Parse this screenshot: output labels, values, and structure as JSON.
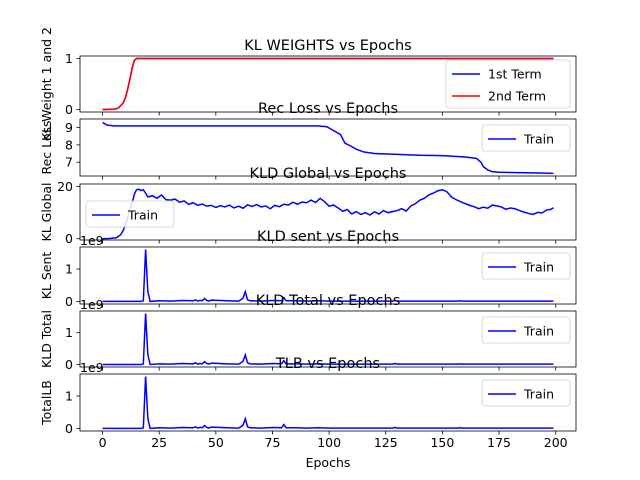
{
  "chart_data": [
    {
      "type": "line",
      "title": "KL WEIGHTS vs Epochs",
      "ylabel": "KL Weight 1 and 2",
      "xlim": [
        -9.95,
        208.95
      ],
      "ylim": [
        -0.05,
        1.05
      ],
      "yticks": [
        0,
        1
      ],
      "ytick_labels": [
        "0",
        "1"
      ],
      "legend": "bottom-right",
      "series": [
        {
          "name": "1st Term",
          "color": "#0000ff",
          "x": [
            0,
            5,
            7,
            9,
            10,
            11,
            12,
            13,
            14,
            15,
            20,
            50,
            100,
            150,
            199
          ],
          "y": [
            0,
            0.005,
            0.03,
            0.12,
            0.22,
            0.38,
            0.58,
            0.8,
            0.96,
            1,
            1,
            1,
            1,
            1,
            1
          ]
        },
        {
          "name": "2nd Term",
          "color": "#ff0000",
          "x": [
            0,
            5,
            7,
            9,
            10,
            11,
            12,
            13,
            14,
            15,
            20,
            50,
            100,
            150,
            199
          ],
          "y": [
            0,
            0.005,
            0.03,
            0.12,
            0.22,
            0.38,
            0.58,
            0.8,
            0.96,
            1,
            1,
            1,
            1,
            1,
            1
          ]
        }
      ]
    },
    {
      "type": "line",
      "title": "Rec Loss vs Epochs",
      "ylabel": "Rec Loss",
      "xlim": [
        -9.95,
        208.95
      ],
      "ylim": [
        6.2,
        9.5
      ],
      "yticks": [
        7,
        8,
        9
      ],
      "ytick_labels": [
        "7",
        "8",
        "9"
      ],
      "legend": "top-right",
      "series": [
        {
          "name": "Train",
          "color": "#0000ff",
          "x": [
            0,
            2,
            5,
            10,
            20,
            40,
            60,
            80,
            95,
            99,
            101,
            103,
            105,
            107,
            110,
            112,
            115,
            120,
            130,
            140,
            150,
            160,
            165,
            167,
            168,
            170,
            172,
            175,
            180,
            190,
            199
          ],
          "y": [
            9.3,
            9.15,
            9.1,
            9.1,
            9.1,
            9.1,
            9.1,
            9.1,
            9.1,
            9.05,
            8.9,
            8.75,
            8.6,
            8.1,
            7.9,
            7.75,
            7.6,
            7.5,
            7.45,
            7.4,
            7.38,
            7.3,
            7.22,
            7.0,
            6.75,
            6.55,
            6.45,
            6.42,
            6.4,
            6.38,
            6.35
          ]
        }
      ]
    },
    {
      "type": "line",
      "title": "KLD Global vs Epochs",
      "ylabel": "KL Global",
      "xlim": [
        -9.95,
        208.95
      ],
      "ylim": [
        -0.5,
        21
      ],
      "yticks": [
        0,
        20
      ],
      "ytick_labels": [
        "0",
        "20"
      ],
      "legend": "middle-left",
      "series": [
        {
          "name": "Train",
          "color": "#0000ff",
          "x": [
            0,
            3,
            6,
            8,
            9,
            10,
            11,
            12,
            13,
            14,
            15,
            16,
            17,
            18,
            19,
            20,
            22,
            24,
            26,
            28,
            30,
            32,
            34,
            36,
            38,
            40,
            42,
            44,
            46,
            48,
            50,
            52,
            54,
            56,
            58,
            60,
            62,
            64,
            66,
            68,
            70,
            72,
            74,
            76,
            78,
            80,
            82,
            84,
            86,
            88,
            90,
            92,
            94,
            96,
            98,
            100,
            102,
            104,
            106,
            108,
            110,
            112,
            114,
            116,
            118,
            120,
            122,
            124,
            126,
            128,
            130,
            132,
            134,
            136,
            138,
            140,
            142,
            144,
            146,
            148,
            150,
            152,
            154,
            156,
            158,
            160,
            162,
            164,
            166,
            168,
            170,
            172,
            174,
            176,
            178,
            180,
            182,
            184,
            186,
            188,
            190,
            192,
            194,
            196,
            198,
            199
          ],
          "y": [
            0,
            0.1,
            0.3,
            1.5,
            3,
            5,
            8,
            11,
            13.5,
            17,
            18.8,
            19,
            18.5,
            18.8,
            17.5,
            16,
            16.5,
            15.5,
            16.8,
            15,
            14.8,
            15.2,
            14,
            14.5,
            13.2,
            13.8,
            12.8,
            13.3,
            12.5,
            12.8,
            12,
            12.7,
            12.2,
            12.9,
            11.8,
            12.5,
            11.7,
            13,
            12.4,
            13.1,
            12.2,
            12.6,
            11.5,
            12.8,
            12.3,
            13.2,
            12.9,
            14,
            13.2,
            14.1,
            13.8,
            14.8,
            13.9,
            15.5,
            14.2,
            12.5,
            12.9,
            11.8,
            10.5,
            11.2,
            9.5,
            10.4,
            9.3,
            10,
            9.1,
            10.3,
            9.5,
            10.8,
            10,
            10.4,
            10.8,
            11.5,
            10.6,
            12.5,
            13.4,
            14.8,
            15.5,
            16.8,
            17.5,
            18.4,
            18.8,
            18,
            16,
            15,
            14.2,
            13.5,
            12.8,
            12.3,
            11.5,
            12.1,
            11.7,
            12.9,
            12.6,
            12.2,
            11.3,
            11.8,
            11.5,
            10.8,
            10.2,
            9.7,
            9.3,
            10.1,
            9.9,
            11,
            11.3,
            11.9
          ]
        }
      ]
    },
    {
      "type": "line",
      "title": "KLD sent vs Epochs",
      "ylabel": "KL Sent",
      "offset_label": "1e9",
      "xlim": [
        -9.95,
        208.95
      ],
      "ylim": [
        -0.08,
        1.68
      ],
      "yticks": [
        0,
        1
      ],
      "ytick_labels": [
        "0",
        "1"
      ],
      "legend": "top-right",
      "series": [
        {
          "name": "Train",
          "color": "#0000ff",
          "x": [
            0,
            17,
            18,
            19,
            20,
            21,
            25,
            30,
            35,
            40,
            41,
            42,
            43,
            44,
            45,
            46,
            47,
            48,
            55,
            60,
            61,
            62,
            63,
            64,
            65,
            70,
            75,
            79,
            80,
            81,
            85,
            90,
            95,
            100,
            120,
            128,
            129,
            130,
            131,
            140,
            150,
            157,
            158,
            159,
            170,
            185,
            199
          ],
          "y": [
            0,
            0,
            0.02,
            1.6,
            0.3,
            0,
            0.02,
            0.01,
            0.03,
            0.02,
            0.05,
            0.01,
            0.03,
            0.02,
            0.09,
            0.03,
            0.01,
            0.04,
            0.02,
            0.01,
            0.05,
            0.1,
            0.3,
            0.05,
            0.02,
            0.01,
            0.03,
            0.02,
            0.12,
            0.02,
            0.02,
            0.01,
            0.02,
            0.01,
            0.01,
            0.01,
            0.03,
            0.01,
            0.01,
            0.01,
            0.01,
            0.01,
            0.02,
            0.01,
            0.01,
            0.01,
            0.01
          ]
        }
      ]
    },
    {
      "type": "line",
      "title": "KLD Total vs Epochs",
      "ylabel": "KLD Total",
      "offset_label": "1e9",
      "xlim": [
        -9.95,
        208.95
      ],
      "ylim": [
        -0.08,
        1.68
      ],
      "yticks": [
        0,
        1
      ],
      "ytick_labels": [
        "0",
        "1"
      ],
      "legend": "top-right",
      "series": [
        {
          "name": "Train",
          "color": "#0000ff",
          "x": [
            0,
            17,
            18,
            19,
            20,
            21,
            25,
            30,
            35,
            40,
            41,
            42,
            43,
            44,
            45,
            46,
            47,
            48,
            55,
            60,
            61,
            62,
            63,
            64,
            65,
            70,
            75,
            79,
            80,
            81,
            85,
            90,
            95,
            100,
            120,
            128,
            129,
            130,
            131,
            140,
            150,
            157,
            158,
            159,
            170,
            185,
            199
          ],
          "y": [
            0,
            0,
            0.02,
            1.6,
            0.3,
            0,
            0.02,
            0.01,
            0.03,
            0.02,
            0.05,
            0.01,
            0.03,
            0.02,
            0.09,
            0.03,
            0.01,
            0.04,
            0.02,
            0.01,
            0.05,
            0.1,
            0.3,
            0.05,
            0.02,
            0.01,
            0.03,
            0.02,
            0.12,
            0.02,
            0.02,
            0.01,
            0.02,
            0.01,
            0.01,
            0.01,
            0.03,
            0.01,
            0.01,
            0.01,
            0.01,
            0.01,
            0.02,
            0.01,
            0.01,
            0.01,
            0.01
          ]
        }
      ]
    },
    {
      "type": "line",
      "title": "TLB vs Epochs",
      "ylabel": "TotalLB",
      "xlabel": "Epochs",
      "offset_label": "1e9",
      "xlim": [
        -9.95,
        208.95
      ],
      "ylim": [
        -0.08,
        1.68
      ],
      "yticks": [
        0,
        1
      ],
      "ytick_labels": [
        "0",
        "1"
      ],
      "xticks": [
        0,
        25,
        50,
        75,
        100,
        125,
        150,
        175,
        200
      ],
      "xtick_labels": [
        "0",
        "25",
        "50",
        "75",
        "100",
        "125",
        "150",
        "175",
        "200"
      ],
      "legend": "top-right",
      "series": [
        {
          "name": "Train",
          "color": "#0000ff",
          "x": [
            0,
            17,
            18,
            19,
            20,
            21,
            25,
            30,
            35,
            40,
            41,
            42,
            43,
            44,
            45,
            46,
            47,
            48,
            55,
            60,
            61,
            62,
            63,
            64,
            65,
            70,
            75,
            79,
            80,
            81,
            85,
            90,
            95,
            100,
            120,
            128,
            129,
            130,
            131,
            140,
            150,
            157,
            158,
            159,
            170,
            185,
            199
          ],
          "y": [
            0,
            0,
            0.02,
            1.6,
            0.3,
            0,
            0.02,
            0.01,
            0.03,
            0.02,
            0.05,
            0.01,
            0.03,
            0.02,
            0.09,
            0.03,
            0.01,
            0.04,
            0.02,
            0.01,
            0.05,
            0.1,
            0.3,
            0.05,
            0.02,
            0.01,
            0.03,
            0.02,
            0.12,
            0.02,
            0.02,
            0.01,
            0.02,
            0.01,
            0.01,
            0.01,
            0.03,
            0.01,
            0.01,
            0.01,
            0.01,
            0.01,
            0.02,
            0.01,
            0.01,
            0.01,
            0.01
          ]
        }
      ]
    }
  ]
}
